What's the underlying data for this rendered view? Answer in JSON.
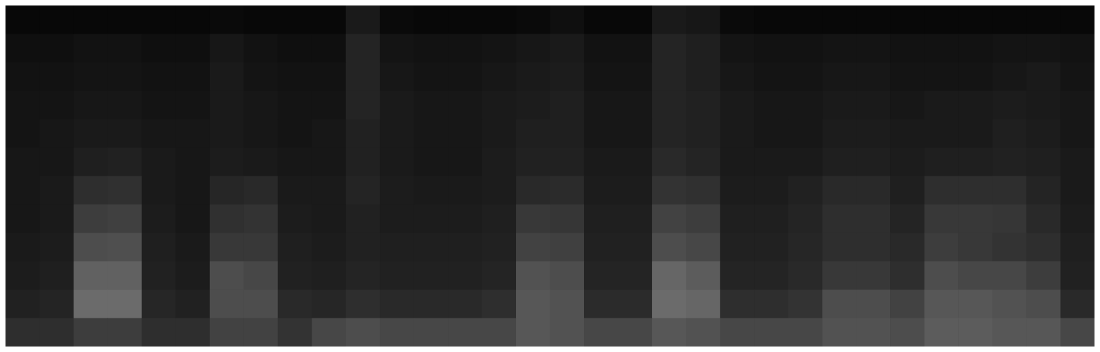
{
  "chart_data": {
    "type": "heatmap",
    "tick_labels": false,
    "cells": [
      [
        3,
        3,
        3,
        3,
        3,
        3,
        4,
        3,
        3,
        3,
        10,
        4,
        3,
        3,
        3,
        4,
        6,
        3,
        3,
        10,
        9,
        4,
        3,
        3,
        3,
        3,
        3,
        3,
        3,
        3,
        3,
        3
      ],
      [
        6,
        6,
        7,
        7,
        6,
        6,
        9,
        7,
        6,
        6,
        14,
        8,
        7,
        7,
        8,
        9,
        10,
        7,
        7,
        14,
        12,
        8,
        7,
        7,
        8,
        8,
        7,
        7,
        7,
        8,
        8,
        7
      ],
      [
        7,
        7,
        8,
        8,
        7,
        7,
        10,
        8,
        7,
        7,
        14,
        9,
        8,
        8,
        9,
        10,
        11,
        8,
        8,
        14,
        12,
        9,
        8,
        8,
        9,
        9,
        8,
        8,
        8,
        9,
        10,
        8
      ],
      [
        8,
        8,
        9,
        9,
        8,
        8,
        10,
        9,
        8,
        8,
        14,
        10,
        9,
        9,
        10,
        11,
        12,
        9,
        9,
        14,
        13,
        10,
        9,
        9,
        10,
        10,
        9,
        10,
        10,
        11,
        10,
        9
      ],
      [
        8,
        9,
        10,
        10,
        9,
        9,
        10,
        9,
        8,
        9,
        13,
        10,
        9,
        9,
        10,
        12,
        12,
        9,
        9,
        14,
        13,
        10,
        9,
        9,
        11,
        11,
        10,
        10,
        10,
        12,
        11,
        9
      ],
      [
        9,
        9,
        12,
        13,
        10,
        9,
        11,
        10,
        9,
        9,
        13,
        10,
        9,
        9,
        11,
        13,
        13,
        10,
        10,
        16,
        14,
        10,
        10,
        10,
        12,
        12,
        11,
        12,
        12,
        13,
        12,
        10
      ],
      [
        9,
        10,
        18,
        19,
        10,
        9,
        15,
        16,
        10,
        10,
        14,
        11,
        10,
        10,
        11,
        16,
        17,
        11,
        11,
        20,
        19,
        11,
        11,
        13,
        16,
        16,
        12,
        18,
        18,
        18,
        14,
        10
      ],
      [
        9,
        10,
        24,
        25,
        11,
        9,
        19,
        20,
        11,
        10,
        13,
        11,
        11,
        11,
        12,
        22,
        21,
        12,
        12,
        26,
        24,
        12,
        12,
        14,
        18,
        18,
        14,
        22,
        22,
        21,
        16,
        11
      ],
      [
        10,
        11,
        30,
        31,
        12,
        10,
        22,
        22,
        12,
        11,
        13,
        12,
        12,
        12,
        13,
        26,
        25,
        13,
        13,
        30,
        28,
        13,
        13,
        15,
        18,
        18,
        16,
        24,
        22,
        20,
        18,
        12
      ],
      [
        11,
        12,
        38,
        38,
        13,
        11,
        30,
        28,
        13,
        12,
        14,
        13,
        13,
        13,
        14,
        32,
        30,
        14,
        14,
        40,
        36,
        14,
        14,
        16,
        22,
        22,
        18,
        30,
        28,
        28,
        24,
        13
      ],
      [
        13,
        14,
        42,
        42,
        15,
        13,
        30,
        30,
        16,
        15,
        18,
        16,
        16,
        16,
        18,
        34,
        32,
        17,
        17,
        42,
        40,
        18,
        18,
        20,
        30,
        30,
        26,
        34,
        34,
        32,
        30,
        16
      ],
      [
        18,
        18,
        24,
        24,
        18,
        18,
        26,
        26,
        20,
        28,
        30,
        28,
        28,
        28,
        28,
        34,
        32,
        28,
        28,
        34,
        32,
        28,
        28,
        28,
        32,
        32,
        30,
        36,
        36,
        34,
        34,
        28
      ]
    ]
  }
}
